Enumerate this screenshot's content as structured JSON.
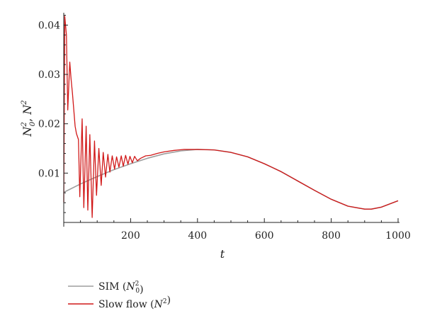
{
  "chart_data": {
    "type": "line",
    "xlabel": "t",
    "ylabel": "N_0^2, N^2",
    "xlim": [
      0,
      1000
    ],
    "ylim": [
      0,
      0.0425
    ],
    "x_ticks": [
      {
        "value": 200,
        "label": "200"
      },
      {
        "value": 400,
        "label": "400"
      },
      {
        "value": 600,
        "label": "600"
      },
      {
        "value": 800,
        "label": "800"
      },
      {
        "value": 1000,
        "label": "1000"
      }
    ],
    "y_ticks": [
      {
        "value": 0.01,
        "label": "0.01"
      },
      {
        "value": 0.02,
        "label": "0.02"
      },
      {
        "value": 0.03,
        "label": "0.03"
      },
      {
        "value": 0.04,
        "label": "0.04"
      }
    ],
    "grid": false,
    "legend_position": "below",
    "series": [
      {
        "name": "SIM (N_0^2)",
        "color": "#9e9e9e",
        "x": [
          0,
          50,
          100,
          150,
          200,
          250,
          300,
          350,
          400,
          450,
          500,
          550,
          600,
          650,
          700,
          750,
          800,
          850,
          900,
          920,
          950,
          1000
        ],
        "y": [
          0.0061,
          0.0078,
          0.0093,
          0.0107,
          0.0119,
          0.013,
          0.0139,
          0.0145,
          0.0148,
          0.0147,
          0.0142,
          0.0133,
          0.0119,
          0.0103,
          0.0084,
          0.0065,
          0.0047,
          0.0033,
          0.0027,
          0.0027,
          0.0031,
          0.0044
        ]
      },
      {
        "name": "Slow flow (N^2)",
        "color": "#d11919",
        "x": [
          0,
          3,
          8,
          12,
          18,
          22,
          26,
          34,
          38,
          44,
          48,
          55,
          60,
          67,
          72,
          78,
          85,
          92,
          98,
          105,
          112,
          118,
          125,
          132,
          138,
          145,
          152,
          158,
          165,
          172,
          178,
          185,
          192,
          198,
          205,
          212,
          220,
          230,
          245,
          260,
          280,
          300,
          330,
          360,
          400,
          450,
          500,
          550,
          600,
          650,
          700,
          750,
          800,
          850,
          900,
          920,
          950,
          1000
        ],
        "y": [
          0.0041,
          0.0418,
          0.038,
          0.0228,
          0.0325,
          0.029,
          0.0262,
          0.0195,
          0.018,
          0.0168,
          0.0052,
          0.021,
          0.003,
          0.0195,
          0.0025,
          0.0178,
          0.001,
          0.0165,
          0.0055,
          0.015,
          0.0075,
          0.0142,
          0.0092,
          0.0138,
          0.0102,
          0.0135,
          0.0108,
          0.0133,
          0.0112,
          0.0135,
          0.0114,
          0.0136,
          0.0118,
          0.0134,
          0.0121,
          0.0134,
          0.0125,
          0.013,
          0.0135,
          0.0136,
          0.014,
          0.0143,
          0.0146,
          0.0148,
          0.0148,
          0.0147,
          0.0142,
          0.0133,
          0.0119,
          0.0103,
          0.0084,
          0.0065,
          0.0047,
          0.0033,
          0.0027,
          0.0027,
          0.0031,
          0.0044
        ]
      }
    ]
  }
}
